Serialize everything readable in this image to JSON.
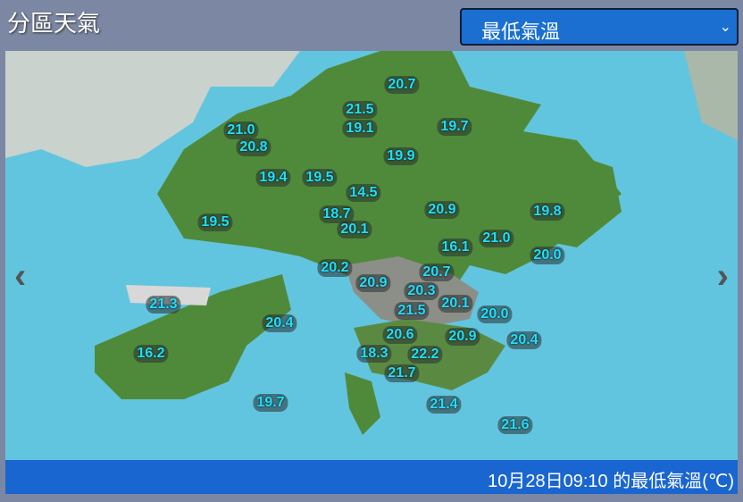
{
  "header": {
    "title": "分區天氣",
    "select": {
      "value": "最低氣溫",
      "icon": "chevron-down-icon"
    }
  },
  "map": {
    "nav": {
      "prev_icon": "chevron-left-icon",
      "next_icon": "chevron-right-icon"
    },
    "colors": {
      "sea": "#62c5df",
      "land": "#4f8a3a",
      "label_text": "#1ee0ff"
    },
    "readings": [
      "20.7",
      "21.5",
      "19.1",
      "19.7",
      "21.0",
      "20.8",
      "19.9",
      "19.4",
      "19.5",
      "14.5",
      "18.7",
      "20.9",
      "19.8",
      "20.1",
      "19.5",
      "21.0",
      "16.1",
      "20.0",
      "20.2",
      "20.7",
      "20.9",
      "20.3",
      "21.3",
      "20.1",
      "21.5",
      "20.0",
      "20.4",
      "20.6",
      "20.9",
      "20.4",
      "18.3",
      "22.2",
      "16.2",
      "21.7",
      "19.7",
      "21.4",
      "21.6"
    ]
  },
  "footer": {
    "caption": "10月28日09:10 的最低氣溫(℃)"
  }
}
